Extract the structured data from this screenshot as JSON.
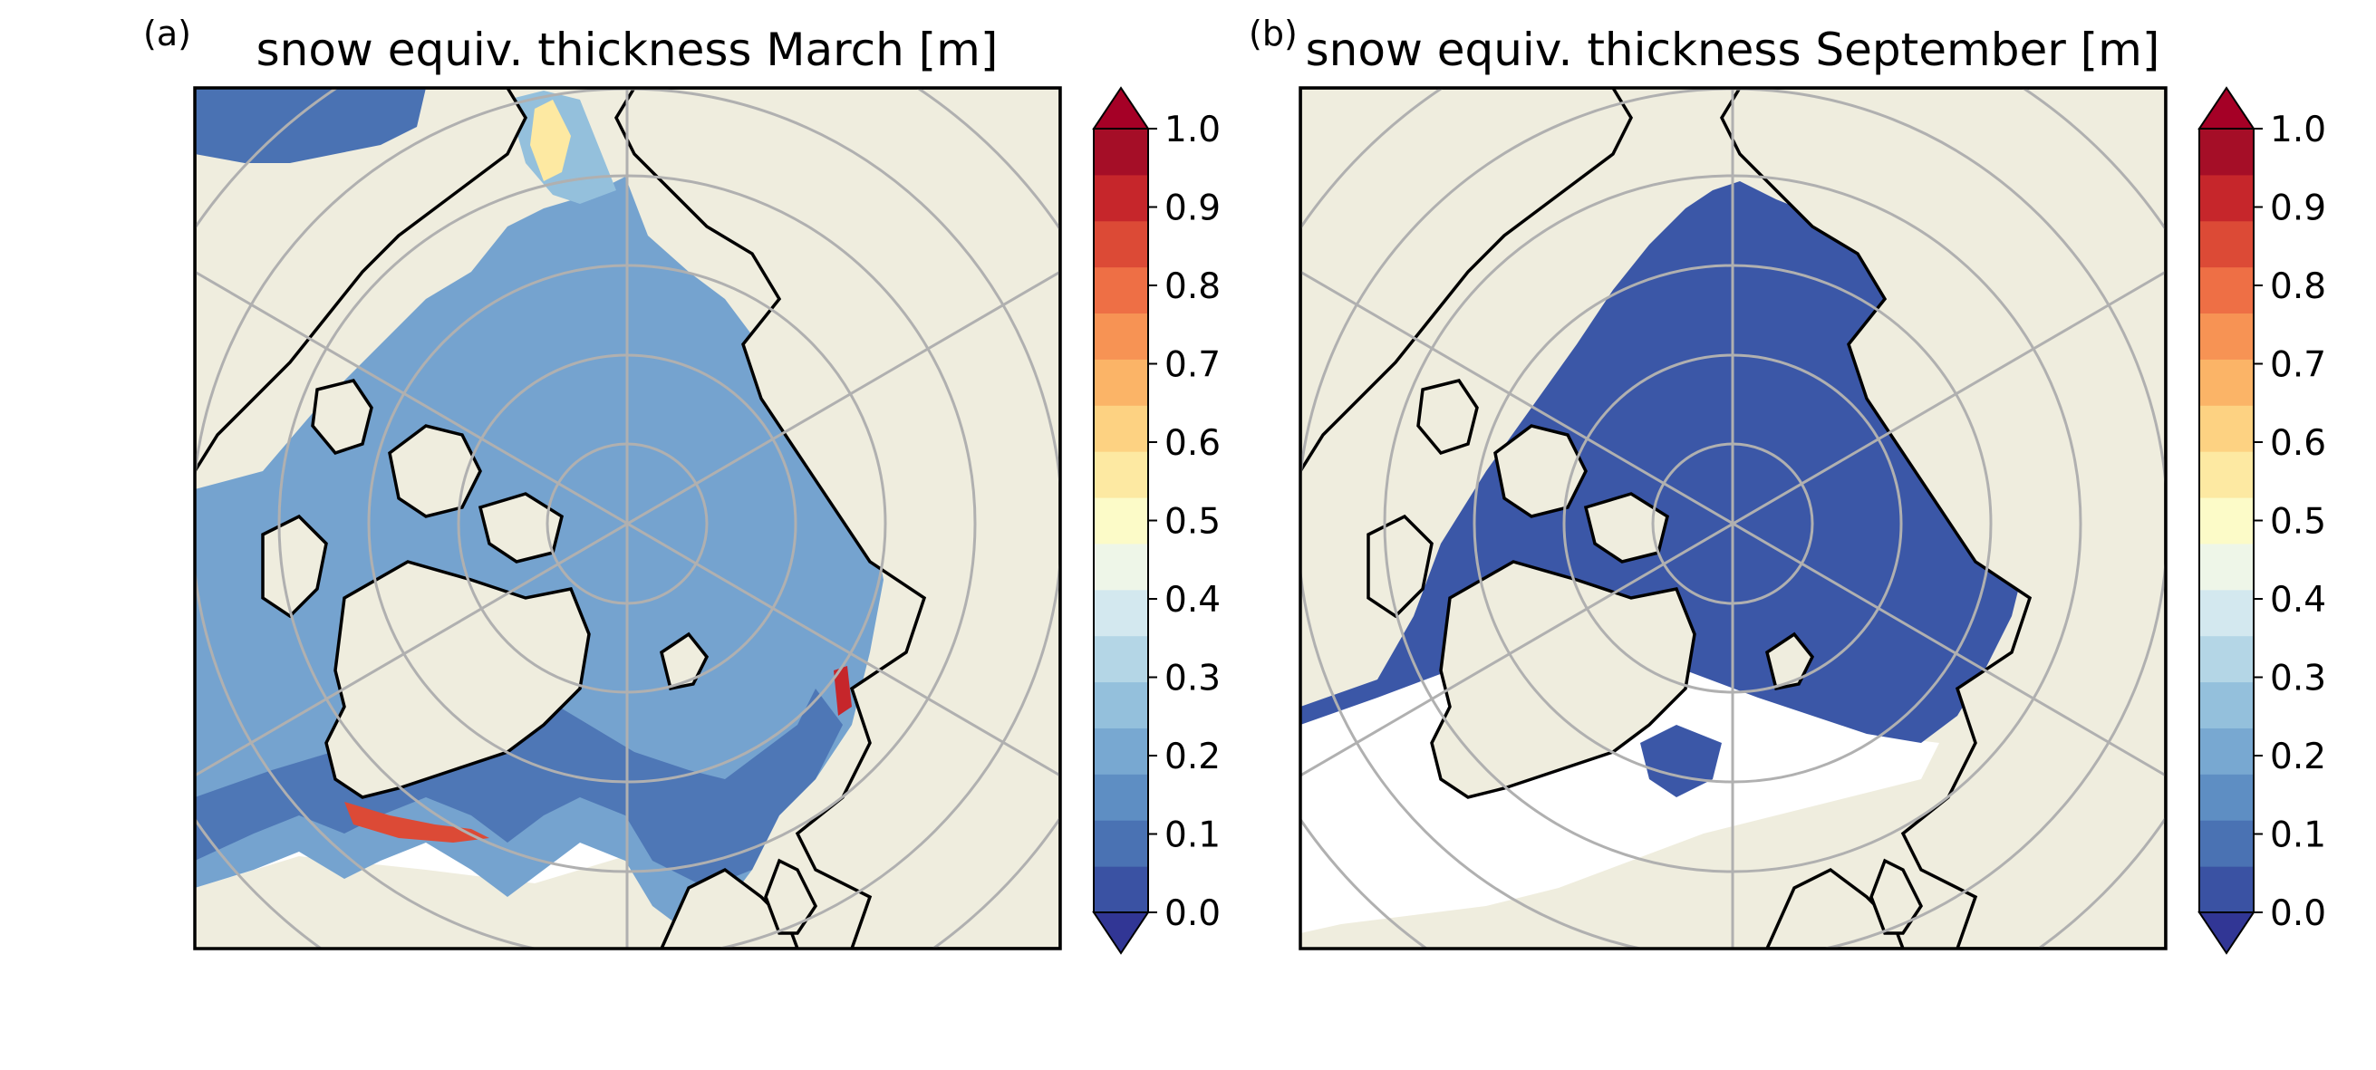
{
  "figure": {
    "panels": [
      {
        "id": "a",
        "label": "(a)",
        "title": "snow equiv. thickness March [m]",
        "field_level": "medium",
        "ice_color": "#75a3cf"
      },
      {
        "id": "b",
        "label": "(b)",
        "title": "snow equiv. thickness September [m]",
        "field_level": "lowest",
        "ice_color": "#3b57a7"
      }
    ],
    "colorbar": {
      "ticks": [
        "0.0",
        "0.1",
        "0.2",
        "0.3",
        "0.4",
        "0.5",
        "0.6",
        "0.7",
        "0.8",
        "0.9",
        "1.0"
      ],
      "extend": "both",
      "colors": [
        "#3a52a3",
        "#4a72b3",
        "#5e8ec3",
        "#78a8d1",
        "#94c0dc",
        "#b4d6e6",
        "#d3e8ef",
        "#eef6e8",
        "#fcfbc8",
        "#fde9a2",
        "#fdd282",
        "#fbb467",
        "#f79354",
        "#ee6f45",
        "#dc4a36",
        "#c6262b",
        "#a50e27"
      ],
      "under_color": "#313695",
      "over_color": "#a50026"
    },
    "land_color": "#efedde",
    "open_water_color": "#ffffff"
  }
}
